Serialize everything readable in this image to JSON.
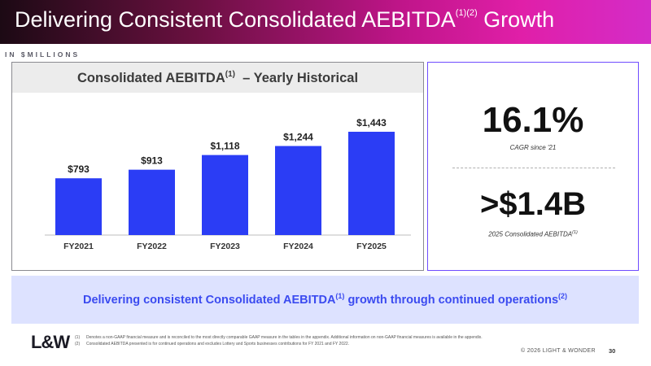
{
  "header": {
    "title_main": "Delivering Consistent Consolidated AEBITDA",
    "title_sup": "(1)(2)",
    "title_end": " Growth"
  },
  "units_label": "IN $MILLIONS",
  "chart_data": {
    "type": "bar",
    "title": "Consolidated AEBITDA",
    "title_sup": "(1)",
    "title_suffix": "– Yearly Historical",
    "categories": [
      "FY2021",
      "FY2022",
      "FY2023",
      "FY2024",
      "FY2025"
    ],
    "values": [
      793,
      913,
      1118,
      1244,
      1443
    ],
    "data_labels": [
      "$793",
      "$913",
      "$1,118",
      "$1,244",
      "$1,443"
    ],
    "xlabel": "",
    "ylabel": "",
    "color": "#2b3df5",
    "grid": false
  },
  "kpis": {
    "cagr_value": "16.1%",
    "cagr_label": "CAGR since '21",
    "total_value": ">$1.4B",
    "total_label": "2025 Consolidated AEBITDA",
    "total_label_sup": "(1)"
  },
  "banner": {
    "text_a": "Delivering consistent Consolidated AEBITDA",
    "sup_a": "(1)",
    "text_b": " growth through continued operations",
    "sup_b": "(2)"
  },
  "footer": {
    "logo": "L&W",
    "footnotes": [
      {
        "num": "(1)",
        "text": "Denotes a non-GAAP financial measure and is reconciled to the most directly comparable GAAP measure in the tables in the appendix. Additional information on non-GAAP financial measures is available in the appendix."
      },
      {
        "num": "(2)",
        "text": "Consolidated AEBITDA presented is for continued operations and excludes Lottery and Sports businesses contributions for FY 2021 and FY 2022."
      }
    ],
    "copyright": "© 2026 LIGHT & WONDER",
    "page_number": "30"
  }
}
